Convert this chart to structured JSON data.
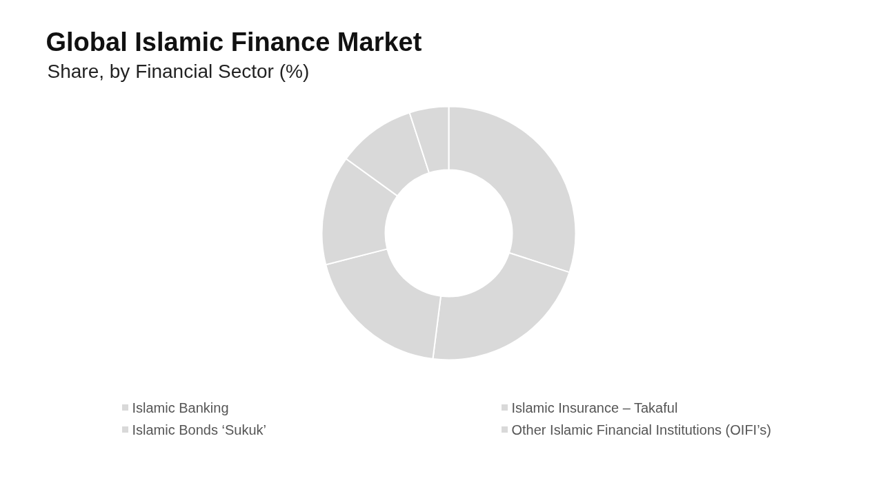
{
  "chart_data": {
    "type": "donut",
    "title": "Global Islamic Finance Market",
    "subtitle": "Share, by Financial Sector (%)",
    "categories": [
      "Islamic Banking",
      "Islamic Bonds ‘Sukuk’",
      "Islamic Insurance – Takaful",
      "Other Islamic Financial Institutions (OIFI’s)",
      null,
      null
    ],
    "values": [
      30,
      22,
      19,
      14,
      10,
      5
    ],
    "colors": [
      "#d9d9d9",
      "#d9d9d9",
      "#d9d9d9",
      "#d9d9d9",
      "#d9d9d9",
      "#d9d9d9"
    ],
    "legend": "bottom"
  }
}
